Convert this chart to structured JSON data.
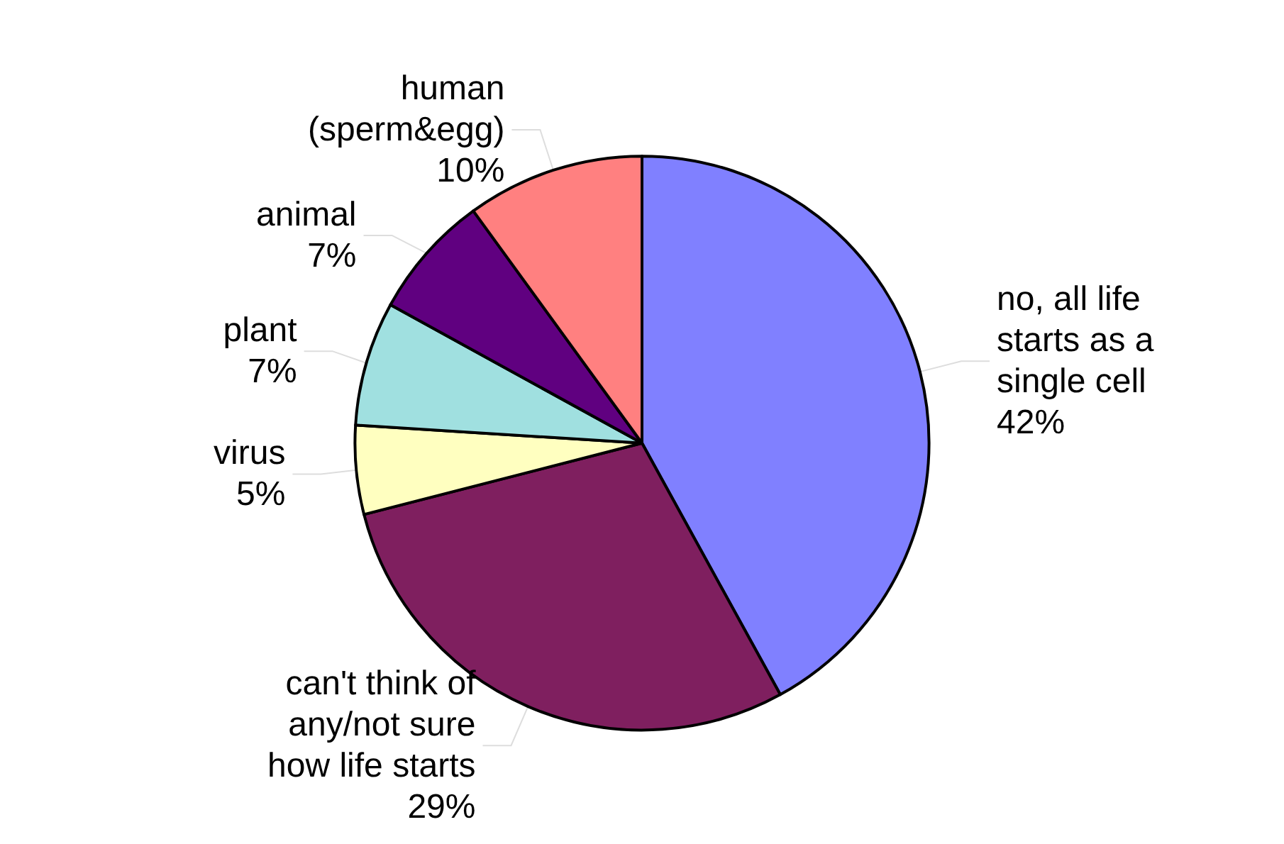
{
  "chart_data": {
    "type": "pie",
    "categories": [
      "no, all life\nstarts as a\nsingle cell",
      "can't think of\nany/not sure\nhow life starts",
      "virus",
      "plant",
      "animal",
      "human\n(sperm&egg)"
    ],
    "values": [
      42,
      29,
      5,
      7,
      7,
      10
    ],
    "value_labels": [
      "42%",
      "29%",
      "5%",
      "7%",
      "7%",
      "10%"
    ],
    "colors": [
      "#8080ff",
      "#7f1f5f",
      "#ffffc0",
      "#a0e0e0",
      "#600080",
      "#ff8080"
    ],
    "legend": false
  }
}
